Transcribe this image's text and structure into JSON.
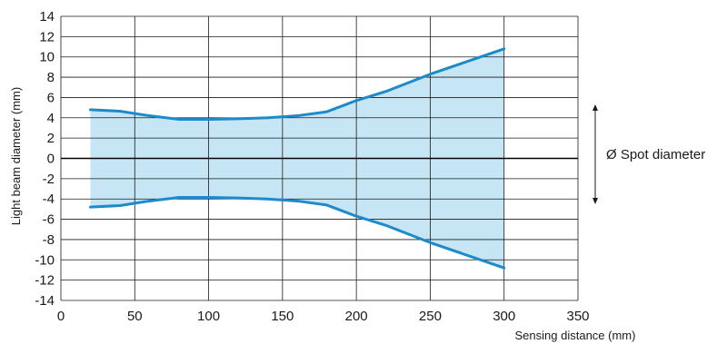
{
  "chart_data": {
    "type": "area",
    "title": "",
    "xlabel": "Sensing distance (mm)",
    "ylabel": "Light beam diameter (mm)",
    "xlim": [
      0,
      350
    ],
    "ylim": [
      -14,
      14
    ],
    "x_ticks": [
      0,
      50,
      100,
      150,
      200,
      250,
      300,
      350
    ],
    "y_ticks": [
      14,
      12,
      10,
      8,
      6,
      4,
      2,
      0,
      -2,
      -4,
      -6,
      -8,
      -10,
      -12,
      -14
    ],
    "x_tick_labels": [
      "0",
      "50",
      "100",
      "150",
      "200",
      "250",
      "300",
      "350"
    ],
    "y_tick_labels": [
      "14",
      "12",
      "10",
      "8",
      "6",
      "4",
      "2",
      "0",
      "-2",
      "-4",
      "-6",
      "-8",
      "-10",
      "-12",
      "-14"
    ],
    "grid": true,
    "series": [
      {
        "x": [
          20,
          40,
          60,
          80,
          100,
          120,
          140,
          160,
          180,
          200,
          220,
          250,
          280,
          300
        ],
        "values": [
          4.8,
          4.65,
          4.2,
          3.85,
          3.85,
          3.9,
          4.0,
          4.2,
          4.6,
          5.7,
          6.6,
          8.3,
          9.8,
          10.8
        ]
      },
      {
        "x": [
          20,
          40,
          60,
          80,
          100,
          120,
          140,
          160,
          180,
          200,
          220,
          250,
          280,
          300
        ],
        "values": [
          -4.8,
          -4.65,
          -4.2,
          -3.85,
          -3.85,
          -3.9,
          -4.0,
          -4.2,
          -4.6,
          -5.7,
          -6.6,
          -8.3,
          -9.8,
          -10.8
        ]
      }
    ],
    "annotation": "Ø Spot diameter",
    "colors": {
      "line": "#1e8ac9",
      "fill": "#c6e6f6",
      "grid": "#1a1a1a",
      "zero_line": "#000000"
    }
  }
}
